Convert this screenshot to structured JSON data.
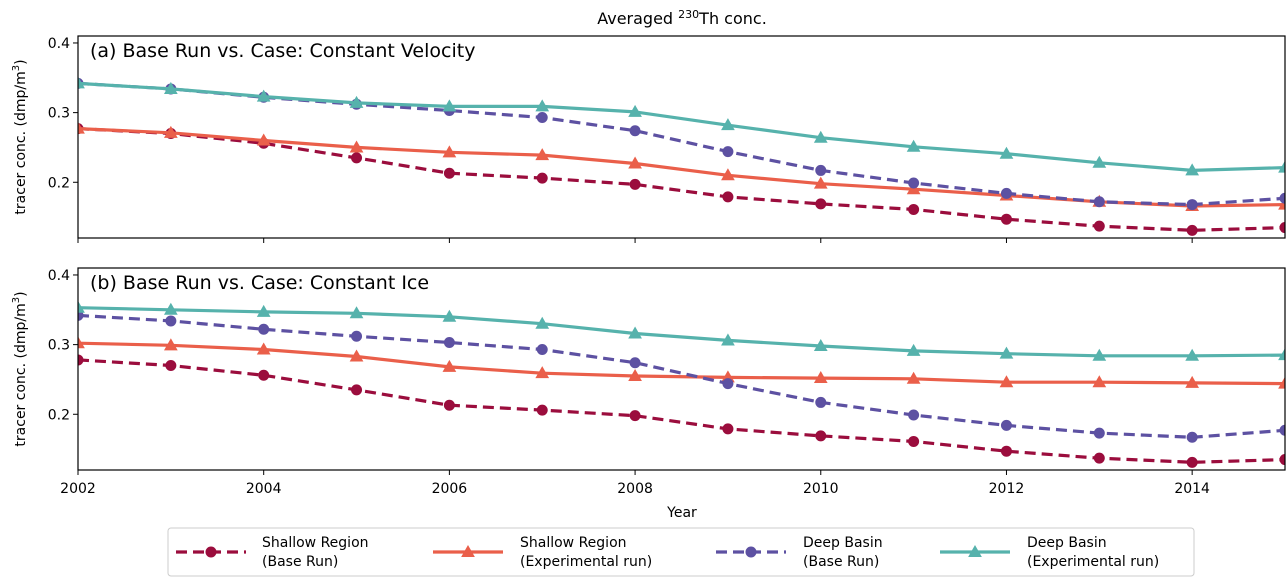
{
  "figure": {
    "title_main": "Averaged ",
    "title_sup": "230",
    "title_rest": "Th conc.",
    "xlabel": "Year"
  },
  "legend": {
    "items": [
      {
        "line1": "Shallow Region",
        "line2": "(Base Run)",
        "color": "#9b0d3d",
        "marker": "circle",
        "dashed": true
      },
      {
        "line1": "Shallow Region",
        "line2": "(Experimental run)",
        "color": "#ea5f4a",
        "marker": "triangle",
        "dashed": false
      },
      {
        "line1": "Deep Basin",
        "line2": "(Base Run)",
        "color": "#5d51a2",
        "marker": "circle",
        "dashed": true
      },
      {
        "line1": "Deep Basin",
        "line2": "(Experimental run)",
        "color": "#56b2ac",
        "marker": "triangle",
        "dashed": false
      }
    ]
  },
  "chart_data": [
    {
      "type": "line",
      "title": "(a) Base Run vs. Case: Constant Velocity",
      "ylabel": "tracer conc. (dmp/m",
      "ylabel_sup": "3",
      "ylabel_end": ")",
      "xlim": [
        2002,
        2015
      ],
      "ylim": [
        0.12,
        0.41
      ],
      "yticks": [
        "0.2",
        "0.3",
        "0.4"
      ],
      "xticks": [
        "2002",
        "2004",
        "2006",
        "2008",
        "2010",
        "2012",
        "2014"
      ],
      "x": [
        2002,
        2003,
        2004,
        2005,
        2006,
        2007,
        2008,
        2009,
        2010,
        2011,
        2012,
        2013,
        2014,
        2015
      ],
      "series": [
        {
          "name": "Shallow Region (Base Run)",
          "values": [
            0.277,
            0.27,
            0.256,
            0.235,
            0.213,
            0.206,
            0.197,
            0.179,
            0.169,
            0.161,
            0.147,
            0.137,
            0.131,
            0.135
          ]
        },
        {
          "name": "Shallow Region (Experimental run)",
          "values": [
            0.277,
            0.271,
            0.26,
            0.25,
            0.243,
            0.239,
            0.227,
            0.21,
            0.198,
            0.19,
            0.181,
            0.172,
            0.166,
            0.168
          ]
        },
        {
          "name": "Deep Basin (Base Run)",
          "values": [
            0.342,
            0.334,
            0.322,
            0.312,
            0.303,
            0.293,
            0.274,
            0.244,
            0.217,
            0.199,
            0.184,
            0.172,
            0.168,
            0.177
          ]
        },
        {
          "name": "Deep Basin (Experimental run)",
          "values": [
            0.342,
            0.334,
            0.323,
            0.314,
            0.309,
            0.309,
            0.301,
            0.282,
            0.264,
            0.251,
            0.241,
            0.228,
            0.217,
            0.221
          ]
        }
      ]
    },
    {
      "type": "line",
      "title": "(b) Base Run vs. Case: Constant Ice",
      "ylabel": "tracer conc. (dmp/m",
      "ylabel_sup": "3",
      "ylabel_end": ")",
      "xlim": [
        2002,
        2015
      ],
      "ylim": [
        0.12,
        0.41
      ],
      "yticks": [
        "0.2",
        "0.3",
        "0.4"
      ],
      "xticks": [
        "2002",
        "2004",
        "2006",
        "2008",
        "2010",
        "2012",
        "2014"
      ],
      "x": [
        2002,
        2003,
        2004,
        2005,
        2006,
        2007,
        2008,
        2009,
        2010,
        2011,
        2012,
        2013,
        2014,
        2015
      ],
      "series": [
        {
          "name": "Shallow Region (Base Run)",
          "values": [
            0.278,
            0.27,
            0.256,
            0.235,
            0.213,
            0.206,
            0.198,
            0.179,
            0.169,
            0.161,
            0.147,
            0.137,
            0.131,
            0.135
          ]
        },
        {
          "name": "Shallow Region (Experimental run)",
          "values": [
            0.302,
            0.299,
            0.293,
            0.283,
            0.268,
            0.259,
            0.255,
            0.253,
            0.252,
            0.251,
            0.246,
            0.246,
            0.245,
            0.244
          ]
        },
        {
          "name": "Deep Basin (Base Run)",
          "values": [
            0.342,
            0.334,
            0.322,
            0.312,
            0.303,
            0.293,
            0.274,
            0.244,
            0.217,
            0.199,
            0.184,
            0.173,
            0.167,
            0.177
          ]
        },
        {
          "name": "Deep Basin (Experimental run)",
          "values": [
            0.353,
            0.35,
            0.347,
            0.345,
            0.34,
            0.33,
            0.316,
            0.306,
            0.298,
            0.291,
            0.287,
            0.284,
            0.284,
            0.285
          ]
        }
      ]
    }
  ]
}
